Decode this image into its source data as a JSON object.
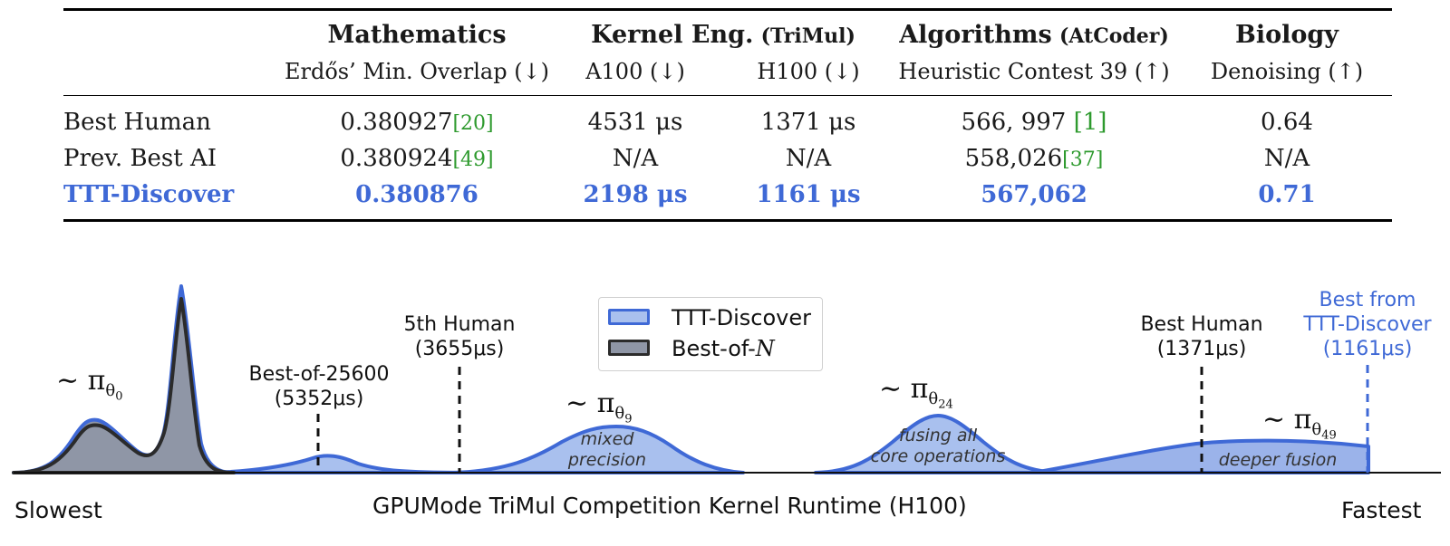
{
  "table": {
    "columns": {
      "math": {
        "group": "Mathematics",
        "metric": "Erdős’ Min. Overlap (↓)"
      },
      "kernel": {
        "group": "Kernel Eng.",
        "group_suffix": "(TriMul)",
        "a100": "A100 (↓)",
        "h100": "H100 (↓)"
      },
      "algo": {
        "group": "Algorithms",
        "group_suffix": "(AtCoder)",
        "metric": "Heuristic Contest 39 (↑)"
      },
      "bio": {
        "group": "Biology",
        "metric": "Denoising (↑)"
      }
    },
    "rows": [
      {
        "label": "Best Human",
        "math": "0.380927",
        "math_cite": "[20]",
        "a100": "4531 μs",
        "h100": "1371 μs",
        "algo": "566, 997",
        "algo_cite": "[1]",
        "bio": "0.64"
      },
      {
        "label": "Prev. Best AI",
        "math": "0.380924",
        "math_cite": "[49]",
        "a100": "N/A",
        "h100": "N/A",
        "algo": "558,026",
        "algo_cite": "[37]",
        "bio": "N/A"
      },
      {
        "label": "TTT-Discover",
        "math": "0.380876",
        "math_cite": "",
        "a100": "2198 μs",
        "h100": "1161 μs",
        "algo": "567,062",
        "algo_cite": "",
        "bio": "0.71"
      }
    ]
  },
  "figure": {
    "colors": {
      "ttt_fill": "#a9c0ee",
      "ttt_line": "#3f69d6",
      "bon_fill": "#8f96a6",
      "bon_line": "#2b2b2b"
    },
    "legend": {
      "ttt": "TTT-Discover",
      "bon_prefix": "Best-of-",
      "bon_n": "N"
    },
    "markers": {
      "best_of_25600": {
        "line1": "Best-of-25600",
        "line2": "(5352μs)"
      },
      "fifth_human": {
        "line1": "5th Human",
        "line2": "(3655μs)"
      },
      "best_human": {
        "line1": "Best Human",
        "line2": "(1371μs)"
      },
      "best_ttt": {
        "line1": "Best from",
        "line2": "TTT-Discover",
        "line3": "(1161μs)"
      }
    },
    "policies": {
      "p0": {
        "sym": "∼ π",
        "sub": "θ",
        "subsub": "0"
      },
      "p9": {
        "sym": "∼ π",
        "sub": "θ",
        "subsub": "9"
      },
      "p24": {
        "sym": "∼ π",
        "sub": "θ",
        "subsub": "24"
      },
      "p49": {
        "sym": "∼ π",
        "sub": "θ",
        "subsub": "49"
      }
    },
    "annotations": {
      "mixed_1": "mixed",
      "mixed_2": "precision",
      "fusing_1": "fusing all",
      "fusing_2": "core operations",
      "deeper": "deeper fusion"
    },
    "axis": {
      "left": "Slowest",
      "title": "GPUMode TriMul Competition Kernel Runtime (H100)",
      "right": "Fastest"
    }
  }
}
